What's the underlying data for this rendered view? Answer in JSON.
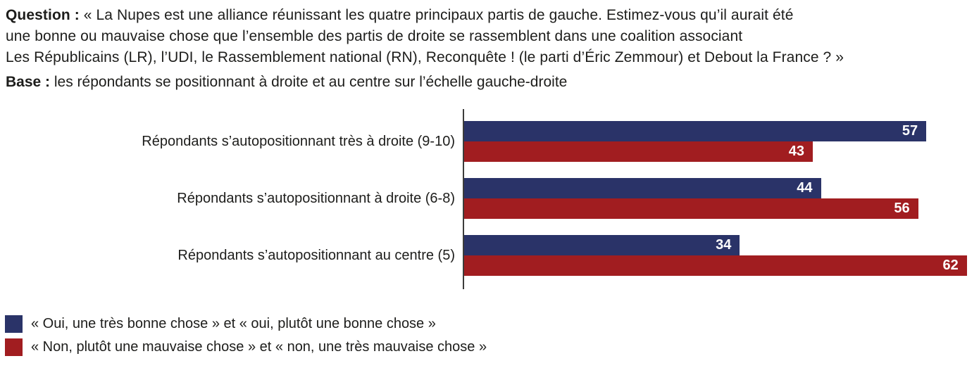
{
  "header": {
    "question_label": "Question :",
    "question_lines": [
      "« La Nupes est une alliance réunissant les quatre principaux partis de gauche. Estimez-vous qu’il aurait été",
      "une bonne ou mauvaise chose que l’ensemble des partis de droite se rassemblent dans une coalition associant",
      "Les Républicains (LR), l’UDI, le Rassemblement national (RN), Reconquête ! (le parti d’Éric Zemmour) et Debout la France ? »"
    ],
    "base_label": "Base :",
    "base_text": "les répondants se positionnant à droite et au centre sur l’échelle gauche-droite"
  },
  "colors": {
    "text": "#1d1d1b",
    "axis": "#3c3c3b",
    "yes_blue": "#2a3368",
    "no_red": "#a11d20"
  },
  "chart_data": {
    "type": "bar",
    "orientation": "horizontal",
    "title": "",
    "xlabel": "",
    "ylabel": "",
    "value_unit": "%",
    "xlim": [
      0,
      63.5
    ],
    "grid": false,
    "value_labels": "inside-end",
    "legend_position": "bottom-left",
    "categories": [
      "Répondants s’autopositionnant très à droite (9-10)",
      "Répondants s’autopositionnant à droite (6-8)",
      "Répondants s’autopositionnant au centre (5)"
    ],
    "series": [
      {
        "name": "« Oui, une très bonne chose » et « oui, plutôt une bonne chose »",
        "color": "#2a3368",
        "values": [
          57,
          44,
          34
        ]
      },
      {
        "name": "« Non, plutôt une mauvaise chose » et « non, une très mauvaise chose »",
        "color": "#a11d20",
        "values": [
          43,
          56,
          62
        ]
      }
    ]
  }
}
